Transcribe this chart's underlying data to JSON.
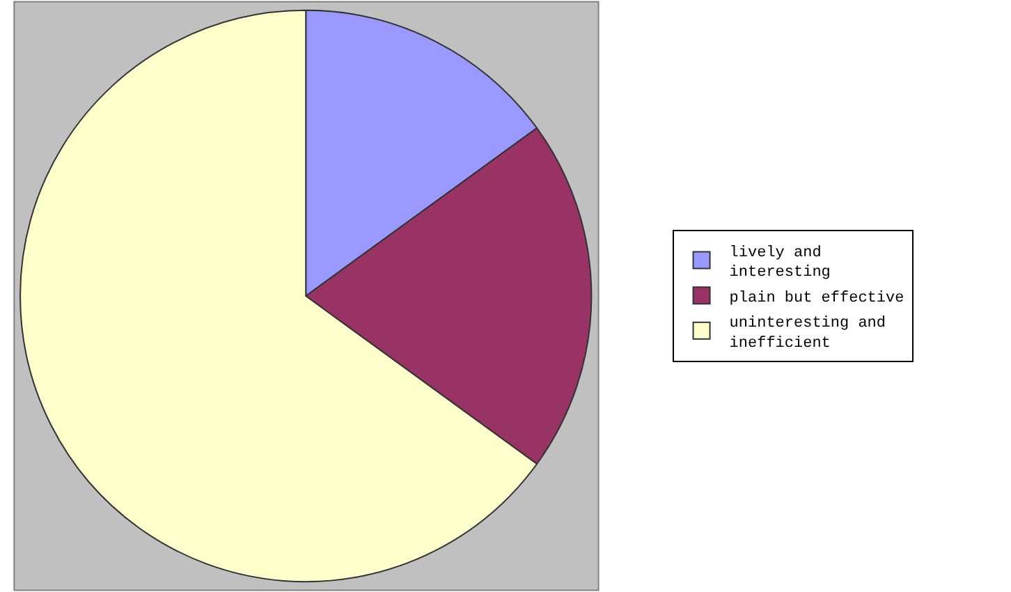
{
  "chart_data": {
    "type": "pie",
    "categories": [
      "lively and interesting",
      "plain but effective",
      "uninteresting and inefficient"
    ],
    "values": [
      15,
      20,
      65
    ],
    "colors": [
      "#9999ff",
      "#993366",
      "#ffffcc"
    ],
    "legend": "right"
  }
}
